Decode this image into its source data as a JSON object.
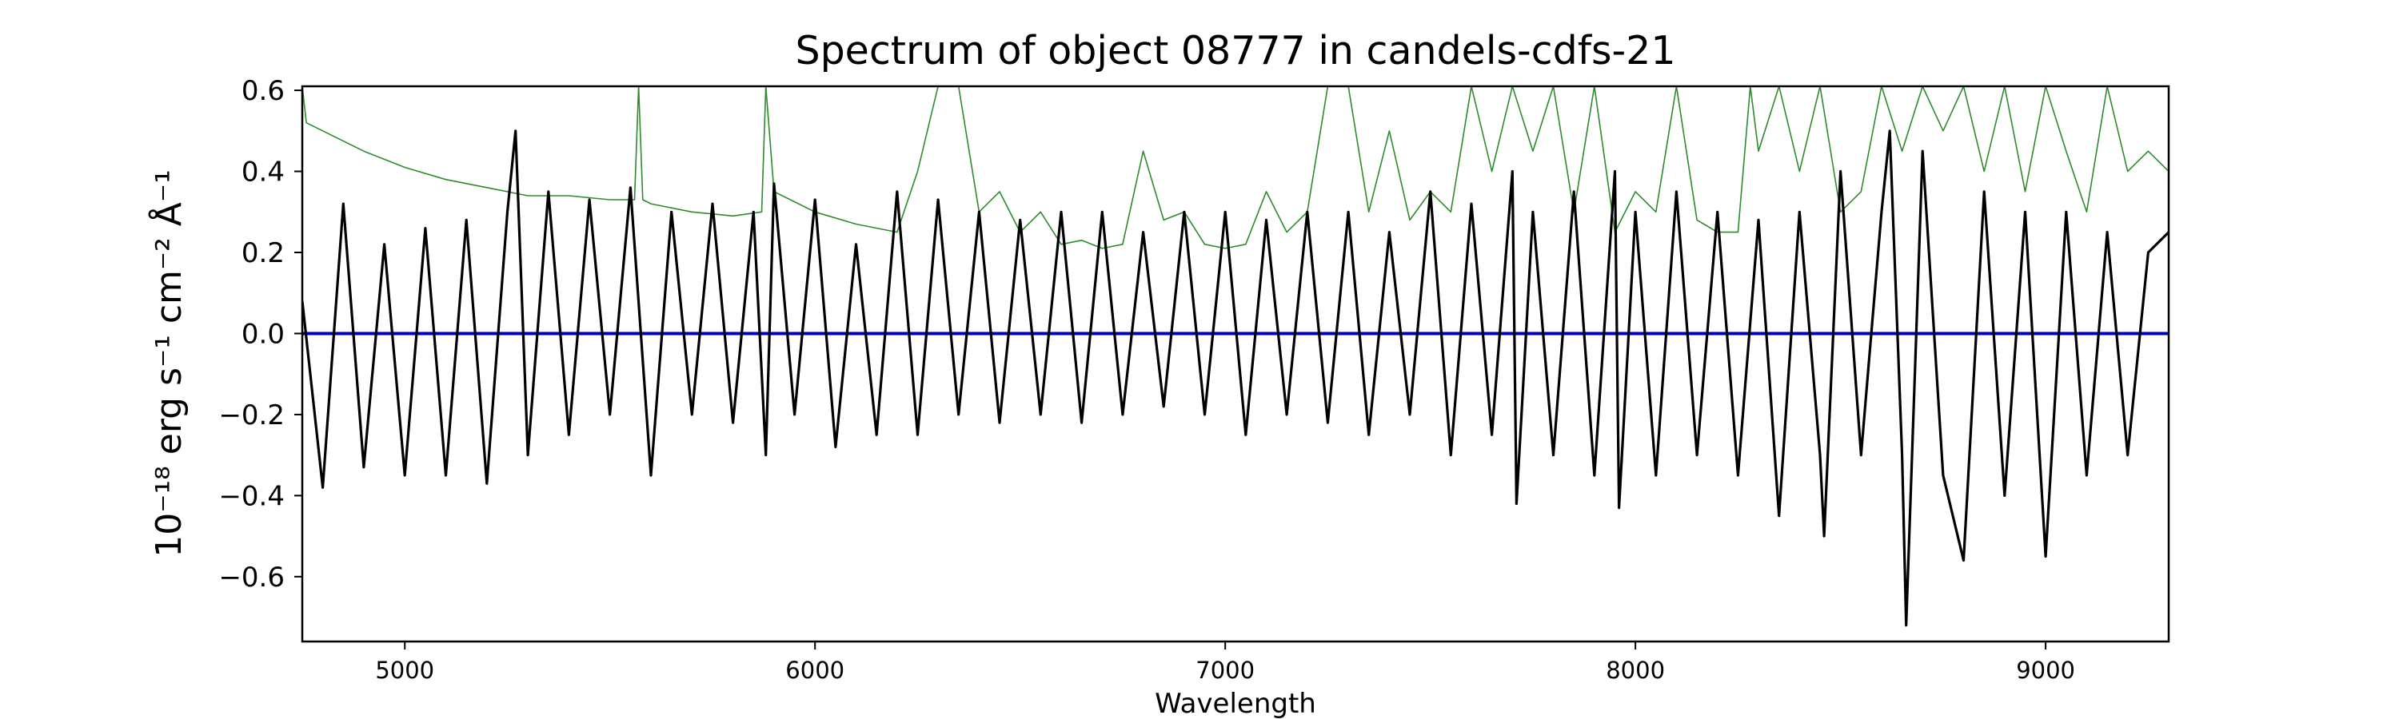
{
  "chart_data": {
    "type": "line",
    "title": "Spectrum of object 08777 in candels-cdfs-21",
    "xlabel": "Wavelength",
    "ylabel": "10⁻¹⁸ erg s⁻¹ cm⁻² Å⁻¹",
    "xlim": [
      4750,
      9300
    ],
    "ylim": [
      -0.76,
      0.61
    ],
    "xticks": [
      5000,
      6000,
      7000,
      8000,
      9000
    ],
    "xtick_labels": [
      "5000",
      "6000",
      "7000",
      "8000",
      "9000"
    ],
    "yticks": [
      -0.6,
      -0.4,
      -0.2,
      0.0,
      0.2,
      0.4,
      0.6
    ],
    "ytick_labels": [
      "−0.6",
      "−0.4",
      "−0.2",
      "0.0",
      "0.2",
      "0.4",
      "0.6"
    ],
    "grid": false,
    "legend": "none",
    "colors": {
      "flux": "#000000",
      "error": "#2e8b2e",
      "model": "#0000b0"
    },
    "series": [
      {
        "key": "flux",
        "x": [
          4750,
          4800,
          4850,
          4900,
          4950,
          5000,
          5050,
          5100,
          5150,
          5200,
          5250,
          5270,
          5300,
          5350,
          5400,
          5450,
          5500,
          5550,
          5600,
          5650,
          5700,
          5750,
          5800,
          5850,
          5880,
          5900,
          5950,
          6000,
          6050,
          6100,
          6150,
          6200,
          6250,
          6300,
          6350,
          6400,
          6450,
          6500,
          6550,
          6600,
          6650,
          6700,
          6750,
          6800,
          6850,
          6900,
          6950,
          7000,
          7050,
          7100,
          7150,
          7200,
          7250,
          7300,
          7350,
          7400,
          7450,
          7500,
          7550,
          7600,
          7650,
          7700,
          7710,
          7750,
          7800,
          7850,
          7900,
          7950,
          7960,
          8000,
          8050,
          8100,
          8150,
          8200,
          8250,
          8300,
          8350,
          8400,
          8450,
          8460,
          8500,
          8550,
          8600,
          8620,
          8650,
          8660,
          8700,
          8750,
          8800,
          8850,
          8900,
          8950,
          9000,
          9050,
          9100,
          9150,
          9200,
          9250,
          9300
        ],
        "y": [
          0.08,
          -0.38,
          0.32,
          -0.33,
          0.22,
          -0.35,
          0.26,
          -0.35,
          0.28,
          -0.37,
          0.3,
          0.5,
          -0.3,
          0.35,
          -0.25,
          0.33,
          -0.2,
          0.36,
          -0.35,
          0.3,
          -0.2,
          0.32,
          -0.22,
          0.3,
          -0.3,
          0.37,
          -0.2,
          0.33,
          -0.28,
          0.22,
          -0.25,
          0.35,
          -0.25,
          0.33,
          -0.2,
          0.3,
          -0.22,
          0.28,
          -0.2,
          0.3,
          -0.22,
          0.3,
          -0.2,
          0.25,
          -0.18,
          0.3,
          -0.2,
          0.3,
          -0.25,
          0.28,
          -0.2,
          0.3,
          -0.22,
          0.3,
          -0.25,
          0.25,
          -0.2,
          0.35,
          -0.3,
          0.32,
          -0.25,
          0.4,
          -0.42,
          0.3,
          -0.3,
          0.35,
          -0.35,
          0.4,
          -0.43,
          0.3,
          -0.35,
          0.35,
          -0.3,
          0.3,
          -0.35,
          0.28,
          -0.45,
          0.3,
          -0.3,
          -0.5,
          0.4,
          -0.3,
          0.3,
          0.5,
          -0.3,
          -0.72,
          0.45,
          -0.35,
          -0.56,
          0.35,
          -0.4,
          0.3,
          -0.55,
          0.3,
          -0.35,
          0.25,
          -0.3,
          0.2,
          0.25
        ]
      },
      {
        "key": "error",
        "x": [
          4750,
          4760,
          4800,
          4900,
          5000,
          5100,
          5200,
          5300,
          5400,
          5500,
          5560,
          5570,
          5580,
          5600,
          5700,
          5800,
          5870,
          5880,
          5900,
          6000,
          6100,
          6200,
          6250,
          6300,
          6350,
          6400,
          6450,
          6500,
          6550,
          6600,
          6650,
          6700,
          6750,
          6800,
          6850,
          6900,
          6950,
          7000,
          7050,
          7100,
          7150,
          7200,
          7250,
          7300,
          7350,
          7400,
          7450,
          7500,
          7550,
          7600,
          7650,
          7700,
          7750,
          7800,
          7850,
          7900,
          7950,
          8000,
          8050,
          8100,
          8150,
          8200,
          8250,
          8280,
          8300,
          8350,
          8400,
          8450,
          8500,
          8550,
          8600,
          8650,
          8700,
          8750,
          8800,
          8850,
          8900,
          8950,
          9000,
          9050,
          9100,
          9150,
          9200,
          9250,
          9300
        ],
        "y": [
          0.61,
          0.52,
          0.5,
          0.45,
          0.41,
          0.38,
          0.36,
          0.34,
          0.34,
          0.33,
          0.33,
          0.61,
          0.33,
          0.32,
          0.3,
          0.29,
          0.3,
          0.61,
          0.35,
          0.3,
          0.27,
          0.25,
          0.4,
          0.61,
          0.61,
          0.3,
          0.35,
          0.25,
          0.3,
          0.22,
          0.23,
          0.21,
          0.22,
          0.45,
          0.28,
          0.3,
          0.22,
          0.21,
          0.22,
          0.35,
          0.25,
          0.3,
          0.61,
          0.61,
          0.3,
          0.5,
          0.28,
          0.35,
          0.3,
          0.61,
          0.4,
          0.61,
          0.45,
          0.61,
          0.3,
          0.61,
          0.25,
          0.35,
          0.3,
          0.61,
          0.28,
          0.25,
          0.25,
          0.61,
          0.45,
          0.61,
          0.4,
          0.61,
          0.3,
          0.35,
          0.61,
          0.45,
          0.61,
          0.5,
          0.61,
          0.4,
          0.61,
          0.35,
          0.61,
          0.45,
          0.3,
          0.61,
          0.4,
          0.45,
          0.4
        ]
      },
      {
        "key": "model",
        "x": [
          4750,
          9300
        ],
        "y": [
          0.0,
          0.0
        ]
      }
    ]
  }
}
